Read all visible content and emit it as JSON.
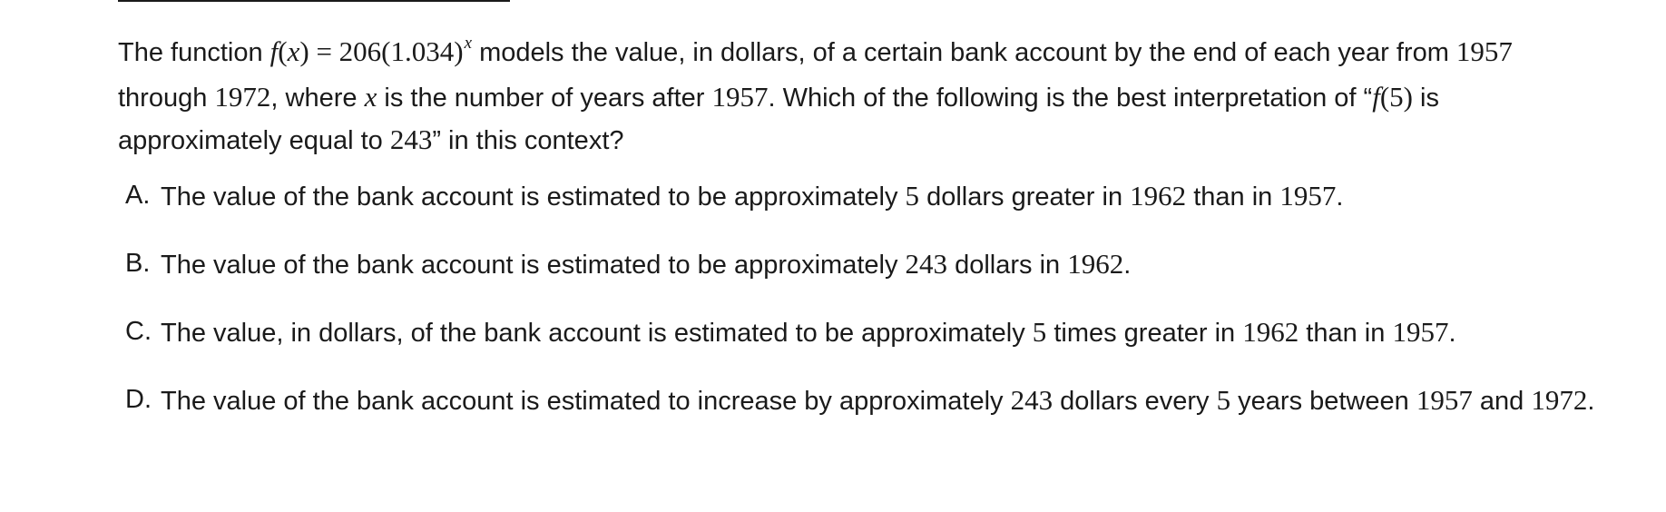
{
  "question": {
    "t1": "The function ",
    "fn_f": "f",
    "fn_open": "(",
    "fn_x": "x",
    "fn_rest": ") = 206(1.034)",
    "fn_exp": "x",
    "t2": " models the value, in dollars, of a certain bank account by the end of each year from ",
    "y1957": "1957",
    "t3": " through ",
    "y1972": "1972",
    "t4": ", where ",
    "var_x": "x",
    "t5": " is the number of years after ",
    "y1957b": "1957",
    "t6": ". Which of the following is the best interpretation of “",
    "f5_f": "f",
    "f5_rest": "(5)",
    "t7": " is approximately equal to ",
    "n243": "243",
    "t8": "” in this context?"
  },
  "options": {
    "a": {
      "letter": "A.",
      "t1": "The value of the bank account is estimated to be approximately ",
      "m1": "5",
      "t2": " dollars greater in ",
      "m2": "1962",
      "t3": " than in ",
      "m3": "1957",
      "t4": "."
    },
    "b": {
      "letter": "B.",
      "t1": "The value of the bank account is estimated to be approximately ",
      "m1": "243",
      "t2": " dollars in ",
      "m2": "1962",
      "t3": "."
    },
    "c": {
      "letter": "C.",
      "t1": "The value, in dollars, of the bank account is estimated to be approximately ",
      "m1": "5",
      "t2": " times greater in ",
      "m2": "1962",
      "t3": " than in ",
      "m3": "1957",
      "t4": "."
    },
    "d": {
      "letter": "D.",
      "t1": "The value of the bank account is estimated to increase by approximately ",
      "m1": "243",
      "t2": " dollars every ",
      "m2": "5",
      "t3": " years between ",
      "m3": "1957",
      "t4": " and ",
      "m4": "1972",
      "t5": "."
    }
  }
}
